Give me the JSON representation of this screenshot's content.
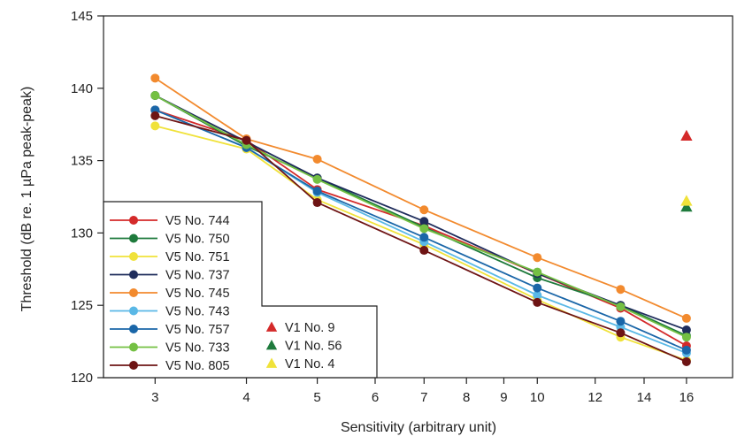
{
  "chart_data": {
    "type": "line",
    "xlabel": "Sensitivity (arbitrary unit)",
    "ylabel": "Threshold (dB re. 1 µPa peak-peak)",
    "x_scale": "log",
    "xlim": [
      2.55,
      18.5
    ],
    "ylim": [
      120,
      145
    ],
    "x_ticks": [
      3,
      4,
      5,
      6,
      7,
      8,
      9,
      10,
      12,
      14,
      16
    ],
    "y_ticks": [
      120,
      125,
      130,
      135,
      140,
      145
    ],
    "grid": false,
    "legend_position": "bottom-left",
    "series": [
      {
        "name": "V5 No. 744",
        "color": "#d42a2a",
        "marker": "circle",
        "x": [
          3,
          4,
          5,
          7,
          10,
          13,
          16
        ],
        "y": [
          138.5,
          136.4,
          133.0,
          130.5,
          127.2,
          124.8,
          122.2
        ]
      },
      {
        "name": "V5 No. 750",
        "color": "#1e7a3c",
        "marker": "circle",
        "x": [
          3,
          4,
          5,
          7,
          10,
          13,
          16
        ],
        "y": [
          139.5,
          136.0,
          133.8,
          130.4,
          126.9,
          125.0,
          122.9
        ]
      },
      {
        "name": "V5 No. 751",
        "color": "#f0e23a",
        "marker": "circle",
        "x": [
          3,
          4,
          5,
          7,
          10,
          13,
          16
        ],
        "y": [
          137.4,
          135.8,
          132.3,
          129.2,
          125.4,
          122.8,
          121.2
        ]
      },
      {
        "name": "V5 No. 737",
        "color": "#1f2d5c",
        "marker": "circle",
        "x": [
          3,
          4,
          5,
          7,
          10,
          13,
          16
        ],
        "y": [
          139.5,
          136.3,
          133.8,
          130.8,
          127.2,
          125.0,
          123.3
        ]
      },
      {
        "name": "V5 No. 745",
        "color": "#f28a2e",
        "marker": "circle",
        "x": [
          3,
          4,
          5,
          7,
          10,
          13,
          16
        ],
        "y": [
          140.7,
          136.5,
          135.1,
          131.6,
          128.3,
          126.1,
          124.1
        ]
      },
      {
        "name": "V5 No. 743",
        "color": "#5ab8e6",
        "marker": "circle",
        "x": [
          3,
          4,
          5,
          7,
          10,
          13,
          16
        ],
        "y": [
          138.5,
          135.9,
          132.8,
          129.4,
          125.7,
          123.5,
          121.7
        ]
      },
      {
        "name": "V5 No. 757",
        "color": "#1a66a8",
        "marker": "circle",
        "x": [
          3,
          4,
          5,
          7,
          10,
          13,
          16
        ],
        "y": [
          138.5,
          135.9,
          132.9,
          129.7,
          126.2,
          123.9,
          121.9
        ]
      },
      {
        "name": "V5 No. 733",
        "color": "#74c043",
        "marker": "circle",
        "x": [
          3,
          4,
          5,
          7,
          10,
          13,
          16
        ],
        "y": [
          139.5,
          136.1,
          133.7,
          130.3,
          127.3,
          124.9,
          122.8
        ]
      },
      {
        "name": "V5 No. 805",
        "color": "#6e1414",
        "marker": "circle",
        "x": [
          3,
          4,
          5,
          7,
          10,
          13,
          16
        ],
        "y": [
          138.1,
          136.4,
          132.1,
          128.8,
          125.2,
          123.1,
          121.1
        ]
      },
      {
        "name": "V1 No. 9",
        "color": "#d42a2a",
        "marker": "triangle",
        "x": [
          16
        ],
        "y": [
          136.7
        ]
      },
      {
        "name": "V1 No. 56",
        "color": "#1e7a3c",
        "marker": "triangle",
        "x": [
          16
        ],
        "y": [
          131.8
        ]
      },
      {
        "name": "V1 No. 4",
        "color": "#f0e23a",
        "marker": "triangle",
        "x": [
          16
        ],
        "y": [
          132.2
        ]
      }
    ]
  }
}
